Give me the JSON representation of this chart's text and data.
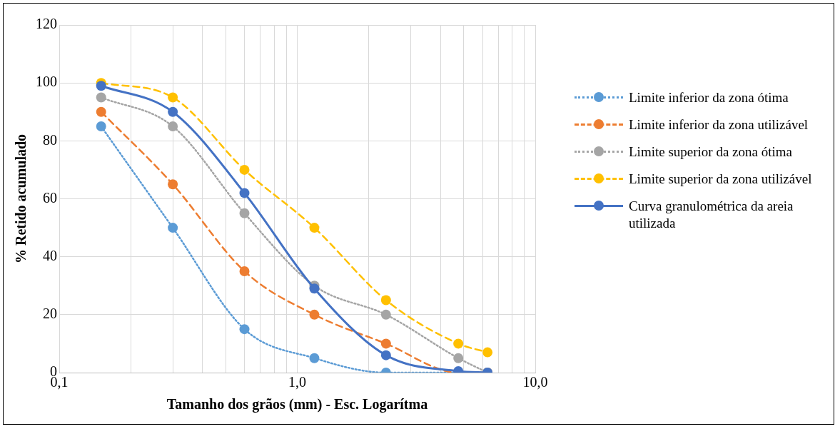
{
  "chart_data": {
    "type": "line",
    "xlabel": "Tamanho dos grãos (mm) - Esc. Logarítma",
    "ylabel": "% Retido acumulado",
    "x": [
      0.15,
      0.3,
      0.6,
      1.18,
      2.36,
      4.75,
      6.3
    ],
    "series": [
      {
        "name": "Limite inferior da zona ótima",
        "color": "#5b9bd5",
        "line_style": "dotted",
        "values": [
          85,
          50,
          15,
          5,
          0,
          0,
          0
        ]
      },
      {
        "name": "Limite inferior da zona utilizável",
        "color": "#ed7d31",
        "line_style": "dashed",
        "values": [
          90,
          65,
          35,
          20,
          10,
          0,
          0
        ]
      },
      {
        "name": "Limite superior da zona ótima",
        "color": "#a5a5a5",
        "line_style": "dotted",
        "values": [
          95,
          85,
          55,
          30,
          20,
          5,
          0
        ]
      },
      {
        "name": "Limite superior da zona utilizável",
        "color": "#ffc000",
        "line_style": "dashed",
        "values": [
          100,
          95,
          70,
          50,
          25,
          10,
          7
        ]
      },
      {
        "name": "Curva granulométrica da areia utilizada",
        "color": "#4472c4",
        "line_style": "solid",
        "values": [
          99,
          90,
          62,
          29,
          6,
          0.5,
          0
        ]
      }
    ],
    "log": "x",
    "xlim": [
      0.1,
      10
    ],
    "xticks": [
      {
        "value": 0.1,
        "label": "0,1"
      },
      {
        "value": 0.2,
        "label": null
      },
      {
        "value": 0.3,
        "label": null
      },
      {
        "value": 0.4,
        "label": null
      },
      {
        "value": 0.5,
        "label": null
      },
      {
        "value": 0.6,
        "label": null
      },
      {
        "value": 0.7,
        "label": null
      },
      {
        "value": 0.8,
        "label": null
      },
      {
        "value": 0.9,
        "label": null
      },
      {
        "value": 1,
        "label": "1,0"
      },
      {
        "value": 2,
        "label": null
      },
      {
        "value": 3,
        "label": null
      },
      {
        "value": 4,
        "label": null
      },
      {
        "value": 5,
        "label": null
      },
      {
        "value": 6,
        "label": null
      },
      {
        "value": 7,
        "label": null
      },
      {
        "value": 8,
        "label": null
      },
      {
        "value": 9,
        "label": null
      },
      {
        "value": 10,
        "label": "10,0"
      }
    ],
    "ylim": [
      0,
      120
    ],
    "yticks": [
      0,
      20,
      40,
      60,
      80,
      100,
      120
    ],
    "grid": true,
    "legend": "right",
    "marker": "circle"
  }
}
